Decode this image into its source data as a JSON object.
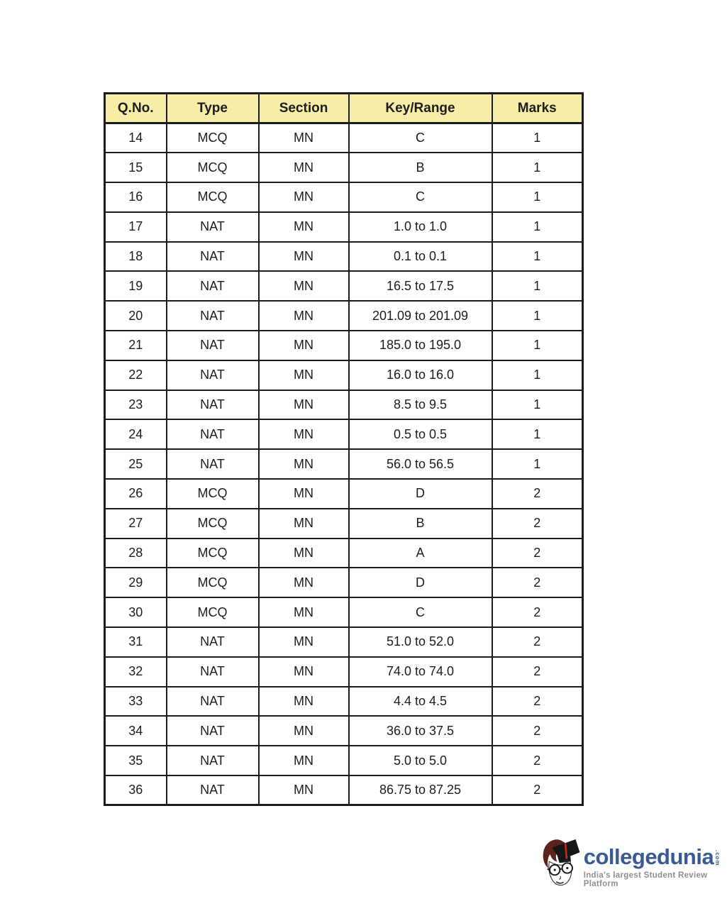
{
  "table": {
    "columns": [
      "Q.No.",
      "Type",
      "Section",
      "Key/Range",
      "Marks"
    ],
    "column_keys": [
      "qno",
      "type",
      "section",
      "key-range",
      "marks"
    ],
    "rows": [
      [
        "14",
        "MCQ",
        "MN",
        "C",
        "1"
      ],
      [
        "15",
        "MCQ",
        "MN",
        "B",
        "1"
      ],
      [
        "16",
        "MCQ",
        "MN",
        "C",
        "1"
      ],
      [
        "17",
        "NAT",
        "MN",
        "1.0 to 1.0",
        "1"
      ],
      [
        "18",
        "NAT",
        "MN",
        "0.1 to 0.1",
        "1"
      ],
      [
        "19",
        "NAT",
        "MN",
        "16.5 to 17.5",
        "1"
      ],
      [
        "20",
        "NAT",
        "MN",
        "201.09 to 201.09",
        "1"
      ],
      [
        "21",
        "NAT",
        "MN",
        "185.0 to 195.0",
        "1"
      ],
      [
        "22",
        "NAT",
        "MN",
        "16.0 to 16.0",
        "1"
      ],
      [
        "23",
        "NAT",
        "MN",
        "8.5 to 9.5",
        "1"
      ],
      [
        "24",
        "NAT",
        "MN",
        "0.5 to 0.5",
        "1"
      ],
      [
        "25",
        "NAT",
        "MN",
        "56.0 to 56.5",
        "1"
      ],
      [
        "26",
        "MCQ",
        "MN",
        "D",
        "2"
      ],
      [
        "27",
        "MCQ",
        "MN",
        "B",
        "2"
      ],
      [
        "28",
        "MCQ",
        "MN",
        "A",
        "2"
      ],
      [
        "29",
        "MCQ",
        "MN",
        "D",
        "2"
      ],
      [
        "30",
        "MCQ",
        "MN",
        "C",
        "2"
      ],
      [
        "31",
        "NAT",
        "MN",
        "51.0 to 52.0",
        "2"
      ],
      [
        "32",
        "NAT",
        "MN",
        "74.0 to 74.0",
        "2"
      ],
      [
        "33",
        "NAT",
        "MN",
        "4.4 to 4.5",
        "2"
      ],
      [
        "34",
        "NAT",
        "MN",
        "36.0 to 37.5",
        "2"
      ],
      [
        "35",
        "NAT",
        "MN",
        "5.0 to 5.0",
        "2"
      ],
      [
        "36",
        "NAT",
        "MN",
        "86.75 to 87.25",
        "2"
      ]
    ]
  },
  "logo": {
    "brand": "collegedunia",
    "suffix": ".com",
    "tagline": "India's largest Student Review Platform"
  },
  "colors": {
    "header_bg": "#f8eda6",
    "table_border": "#1c1c1c",
    "text": "#1d1d1d",
    "brand_blue": "#3a5a94",
    "tagline_gray": "#8d8f92",
    "hair_maroon": "#5a231c",
    "cap_black": "#161616",
    "tassel_red": "#c9251c"
  }
}
